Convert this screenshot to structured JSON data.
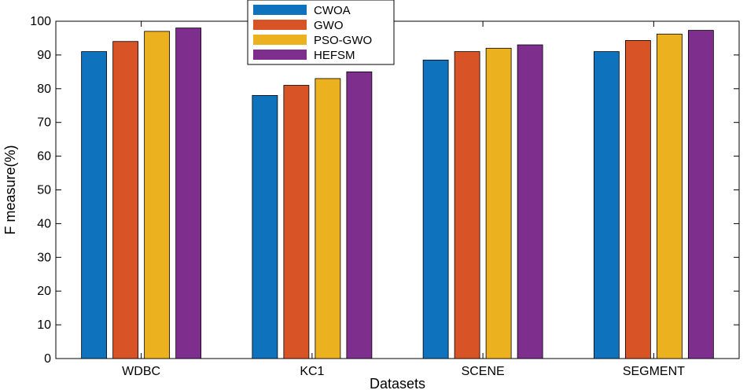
{
  "chart_data": {
    "type": "bar",
    "title": "",
    "xlabel": "Datasets",
    "ylabel": "F measure(%)",
    "ylim": [
      0,
      100
    ],
    "yticks": [
      0,
      10,
      20,
      30,
      40,
      50,
      60,
      70,
      80,
      90,
      100
    ],
    "categories": [
      "WDBC",
      "KC1",
      "SCENE",
      "SEGMENT"
    ],
    "series": [
      {
        "name": "CWOA",
        "color": "#0f72bd",
        "values": [
          91,
          78,
          88.5,
          91
        ]
      },
      {
        "name": "GWO",
        "color": "#d85326",
        "values": [
          94,
          81,
          91,
          94.3
        ]
      },
      {
        "name": "PSO-GWO",
        "color": "#ebb11f",
        "values": [
          97,
          83,
          92,
          96.2
        ]
      },
      {
        "name": "HEFSM",
        "color": "#7e2f8e",
        "values": [
          98,
          85,
          93,
          97.3
        ]
      }
    ],
    "grid": false,
    "legend_position": "top"
  }
}
